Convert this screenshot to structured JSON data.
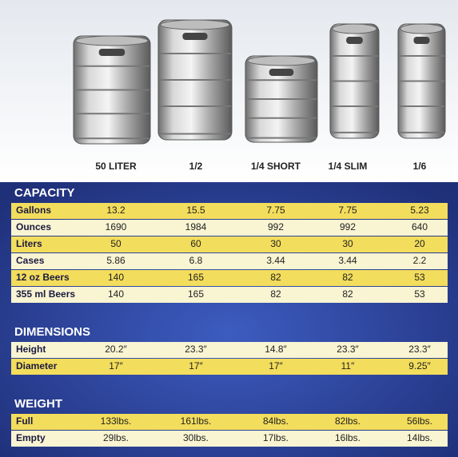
{
  "columns": [
    "50 LITER",
    "1/2",
    "1/4 SHORT",
    "1/4 SLIM",
    "1/6"
  ],
  "sections": [
    {
      "title": "CAPACITY",
      "rows": [
        {
          "label": "Gallons",
          "values": [
            "13.2",
            "15.5",
            "7.75",
            "7.75",
            "5.23"
          ]
        },
        {
          "label": "Ounces",
          "values": [
            "1690",
            "1984",
            "992",
            "992",
            "640"
          ]
        },
        {
          "label": "Liters",
          "values": [
            "50",
            "60",
            "30",
            "30",
            "20"
          ]
        },
        {
          "label": "Cases",
          "values": [
            "5.86",
            "6.8",
            "3.44",
            "3.44",
            "2.2"
          ]
        },
        {
          "label": "12 oz Beers",
          "values": [
            "140",
            "165",
            "82",
            "82",
            "53"
          ]
        },
        {
          "label": "355 ml Beers",
          "values": [
            "140",
            "165",
            "82",
            "82",
            "53"
          ]
        }
      ]
    },
    {
      "title": "DIMENSIONS",
      "rows": [
        {
          "label": "Height",
          "values": [
            "20.2″",
            "23.3″",
            "14.8″",
            "23.3″",
            "23.3″"
          ]
        },
        {
          "label": "Diameter",
          "values": [
            "17″",
            "17″",
            "17″",
            "11″",
            "9.25″"
          ]
        }
      ]
    },
    {
      "title": "WEIGHT",
      "rows": [
        {
          "label": "Full",
          "values": [
            "133lbs.",
            "161lbs.",
            "84lbs.",
            "82lbs.",
            "56lbs."
          ]
        },
        {
          "label": "Empty",
          "values": [
            "29lbs.",
            "30lbs.",
            "17lbs.",
            "16lbs.",
            "14lbs."
          ]
        }
      ]
    }
  ]
}
